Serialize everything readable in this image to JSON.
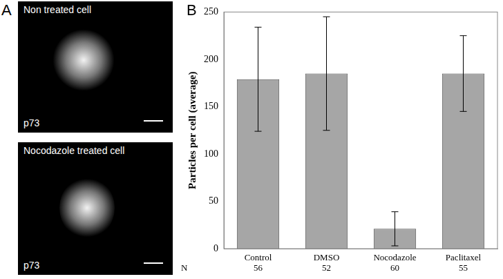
{
  "panel_labels": [
    "A",
    "B"
  ],
  "images": [
    {
      "caption": "Non treated cell",
      "stain": "p73"
    },
    {
      "caption": "Nocodazole treated cell",
      "stain": "p73"
    }
  ],
  "chart_data": {
    "type": "bar",
    "categories": [
      "Control",
      "DMSO",
      "Nocodazole",
      "Paclitaxel"
    ],
    "values": [
      179,
      185,
      21,
      185
    ],
    "errors": [
      55,
      60,
      18,
      40
    ],
    "n_label": "N",
    "n_values": [
      56,
      52,
      60,
      55
    ],
    "y_label": "Particles per cell (average)",
    "color": "#a6a6a6",
    "ylim": [
      0,
      250
    ],
    "yticks": [
      0,
      50,
      100,
      150,
      200,
      250
    ],
    "grid": false
  }
}
